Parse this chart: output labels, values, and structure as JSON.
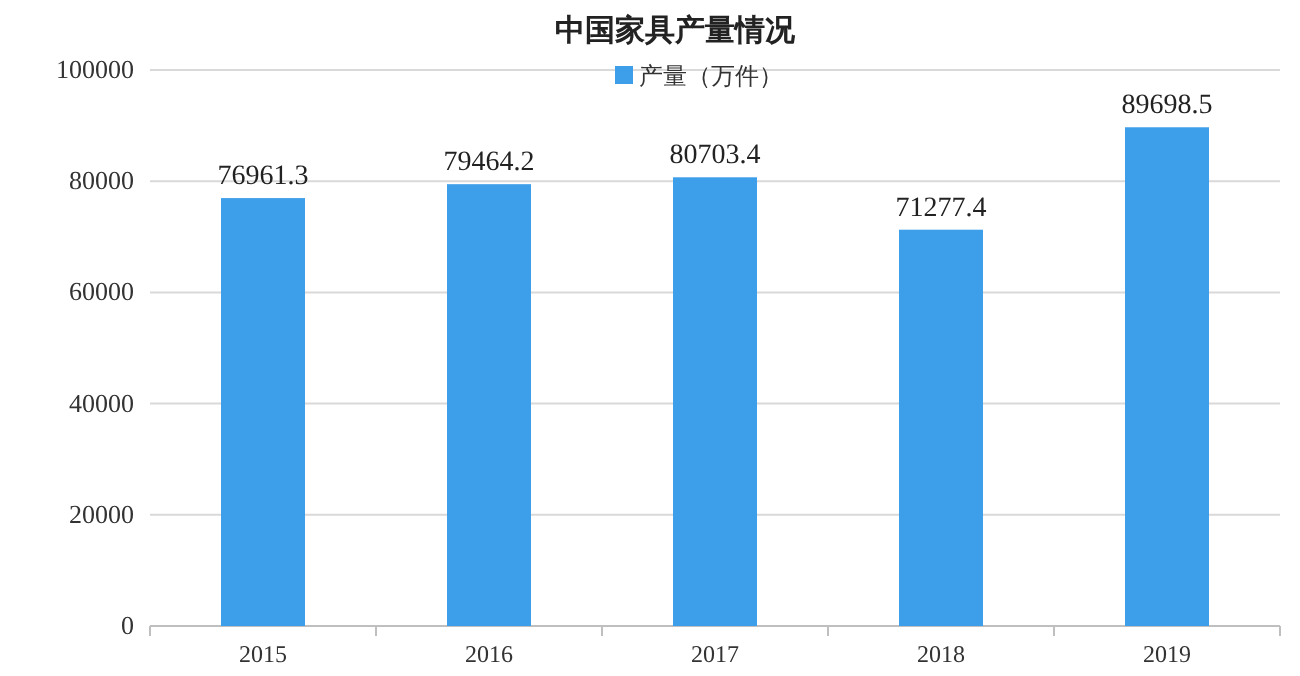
{
  "chart_data": {
    "type": "bar",
    "title": "中国家具产量情况",
    "categories": [
      "2015",
      "2016",
      "2017",
      "2018",
      "2019"
    ],
    "series": [
      {
        "name": "产量（万件）",
        "color": "#3d9ee9",
        "values": [
          76961.3,
          79464.2,
          80703.4,
          71277.4,
          89698.5
        ]
      }
    ],
    "ylim": [
      0,
      100000
    ],
    "yticks": [
      0,
      20000,
      40000,
      60000,
      80000,
      100000
    ],
    "grid": "y",
    "legend": "top",
    "data_labels": true
  }
}
